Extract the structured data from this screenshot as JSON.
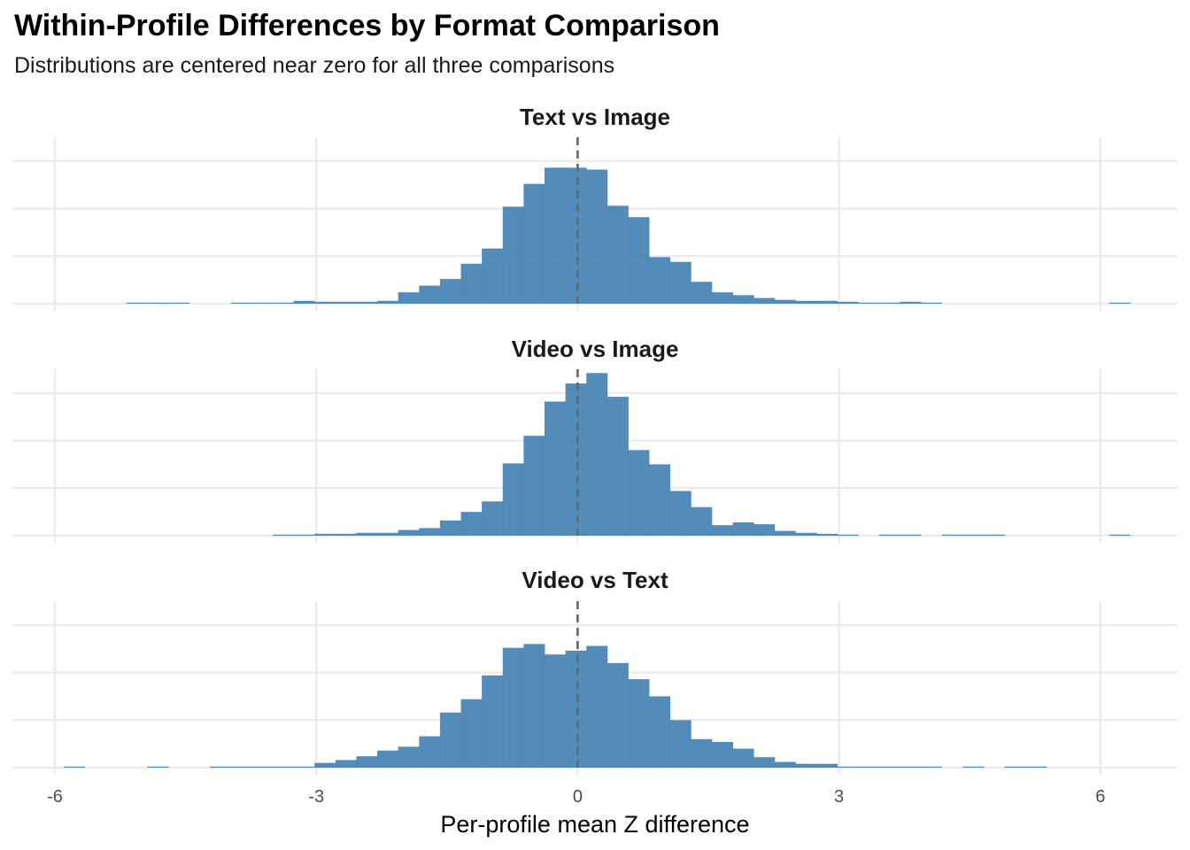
{
  "title": "Within-Profile Differences by Format Comparison",
  "subtitle": "Distributions are centered near zero for all three comparisons",
  "colors": {
    "bar": "#4682b4",
    "grid": "#ebebeb",
    "reference_line": "#666666"
  },
  "chart_data": {
    "type": "histogram",
    "xlabel": "Per-profile mean Z difference",
    "xlim": [
      -6.5,
      6.9
    ],
    "x_ticks": [
      -6,
      -3,
      0,
      3,
      6
    ],
    "x_tick_labels": [
      "-6",
      "-3",
      "0",
      "3",
      "6"
    ],
    "reference_line_x": 0,
    "reference_line_style": "dashed",
    "bin_width": 0.24,
    "y_axis_labels_shown": false,
    "grid": true,
    "panels": [
      {
        "name": "Text vs Image",
        "ymax": 175,
        "bins": [
          {
            "x0": -5.18,
            "count": 1
          },
          {
            "x0": -4.94,
            "count": 1
          },
          {
            "x0": -4.7,
            "count": 1
          },
          {
            "x0": -3.98,
            "count": 1
          },
          {
            "x0": -3.74,
            "count": 1
          },
          {
            "x0": -3.5,
            "count": 1
          },
          {
            "x0": -3.26,
            "count": 3
          },
          {
            "x0": -3.02,
            "count": 2
          },
          {
            "x0": -2.78,
            "count": 2
          },
          {
            "x0": -2.54,
            "count": 2
          },
          {
            "x0": -2.3,
            "count": 3
          },
          {
            "x0": -2.06,
            "count": 12
          },
          {
            "x0": -1.82,
            "count": 19
          },
          {
            "x0": -1.58,
            "count": 26
          },
          {
            "x0": -1.34,
            "count": 42
          },
          {
            "x0": -1.1,
            "count": 58
          },
          {
            "x0": -0.86,
            "count": 102
          },
          {
            "x0": -0.62,
            "count": 126
          },
          {
            "x0": -0.38,
            "count": 143
          },
          {
            "x0": -0.14,
            "count": 143
          },
          {
            "x0": 0.1,
            "count": 141
          },
          {
            "x0": 0.34,
            "count": 103
          },
          {
            "x0": 0.58,
            "count": 91
          },
          {
            "x0": 0.82,
            "count": 49
          },
          {
            "x0": 1.06,
            "count": 44
          },
          {
            "x0": 1.3,
            "count": 23
          },
          {
            "x0": 1.54,
            "count": 12
          },
          {
            "x0": 1.78,
            "count": 9
          },
          {
            "x0": 2.02,
            "count": 6
          },
          {
            "x0": 2.26,
            "count": 4
          },
          {
            "x0": 2.5,
            "count": 3
          },
          {
            "x0": 2.74,
            "count": 3
          },
          {
            "x0": 2.98,
            "count": 2
          },
          {
            "x0": 3.22,
            "count": 1
          },
          {
            "x0": 3.46,
            "count": 1
          },
          {
            "x0": 3.7,
            "count": 2
          },
          {
            "x0": 3.94,
            "count": 1
          },
          {
            "x0": 6.1,
            "count": 1
          }
        ]
      },
      {
        "name": "Video vs Image",
        "ymax": 175,
        "bins": [
          {
            "x0": -3.5,
            "count": 1
          },
          {
            "x0": -3.26,
            "count": 1
          },
          {
            "x0": -3.02,
            "count": 2
          },
          {
            "x0": -2.78,
            "count": 2
          },
          {
            "x0": -2.54,
            "count": 3
          },
          {
            "x0": -2.3,
            "count": 3
          },
          {
            "x0": -2.06,
            "count": 6
          },
          {
            "x0": -1.82,
            "count": 8
          },
          {
            "x0": -1.58,
            "count": 16
          },
          {
            "x0": -1.34,
            "count": 25
          },
          {
            "x0": -1.1,
            "count": 36
          },
          {
            "x0": -0.86,
            "count": 76
          },
          {
            "x0": -0.62,
            "count": 105
          },
          {
            "x0": -0.38,
            "count": 141
          },
          {
            "x0": -0.14,
            "count": 160
          },
          {
            "x0": 0.1,
            "count": 171
          },
          {
            "x0": 0.34,
            "count": 146
          },
          {
            "x0": 0.58,
            "count": 90
          },
          {
            "x0": 0.82,
            "count": 75
          },
          {
            "x0": 1.06,
            "count": 47
          },
          {
            "x0": 1.3,
            "count": 30
          },
          {
            "x0": 1.54,
            "count": 11
          },
          {
            "x0": 1.78,
            "count": 14
          },
          {
            "x0": 2.02,
            "count": 12
          },
          {
            "x0": 2.26,
            "count": 5
          },
          {
            "x0": 2.5,
            "count": 3
          },
          {
            "x0": 2.74,
            "count": 2
          },
          {
            "x0": 2.98,
            "count": 1
          },
          {
            "x0": 3.46,
            "count": 1
          },
          {
            "x0": 3.7,
            "count": 1
          },
          {
            "x0": 4.18,
            "count": 1
          },
          {
            "x0": 4.42,
            "count": 1
          },
          {
            "x0": 4.66,
            "count": 1
          },
          {
            "x0": 6.1,
            "count": 1
          }
        ]
      },
      {
        "name": "Video vs Text",
        "ymax": 175,
        "bins": [
          {
            "x0": -5.9,
            "count": 1
          },
          {
            "x0": -4.94,
            "count": 1
          },
          {
            "x0": -4.22,
            "count": 1
          },
          {
            "x0": -3.98,
            "count": 1
          },
          {
            "x0": -3.74,
            "count": 1
          },
          {
            "x0": -3.5,
            "count": 1
          },
          {
            "x0": -3.26,
            "count": 1
          },
          {
            "x0": -3.02,
            "count": 5
          },
          {
            "x0": -2.78,
            "count": 8
          },
          {
            "x0": -2.54,
            "count": 12
          },
          {
            "x0": -2.3,
            "count": 18
          },
          {
            "x0": -2.06,
            "count": 22
          },
          {
            "x0": -1.82,
            "count": 33
          },
          {
            "x0": -1.58,
            "count": 58
          },
          {
            "x0": -1.34,
            "count": 72
          },
          {
            "x0": -1.1,
            "count": 97
          },
          {
            "x0": -0.86,
            "count": 126
          },
          {
            "x0": -0.62,
            "count": 130
          },
          {
            "x0": -0.38,
            "count": 119
          },
          {
            "x0": -0.14,
            "count": 123
          },
          {
            "x0": 0.1,
            "count": 128
          },
          {
            "x0": 0.34,
            "count": 110
          },
          {
            "x0": 0.58,
            "count": 93
          },
          {
            "x0": 0.82,
            "count": 75
          },
          {
            "x0": 1.06,
            "count": 50
          },
          {
            "x0": 1.3,
            "count": 30
          },
          {
            "x0": 1.54,
            "count": 27
          },
          {
            "x0": 1.78,
            "count": 20
          },
          {
            "x0": 2.02,
            "count": 11
          },
          {
            "x0": 2.26,
            "count": 6
          },
          {
            "x0": 2.5,
            "count": 4
          },
          {
            "x0": 2.74,
            "count": 4
          },
          {
            "x0": 2.98,
            "count": 1
          },
          {
            "x0": 3.22,
            "count": 1
          },
          {
            "x0": 3.46,
            "count": 1
          },
          {
            "x0": 3.7,
            "count": 1
          },
          {
            "x0": 3.94,
            "count": 1
          },
          {
            "x0": 4.42,
            "count": 1
          },
          {
            "x0": 4.9,
            "count": 1
          },
          {
            "x0": 5.14,
            "count": 1
          }
        ]
      }
    ]
  }
}
